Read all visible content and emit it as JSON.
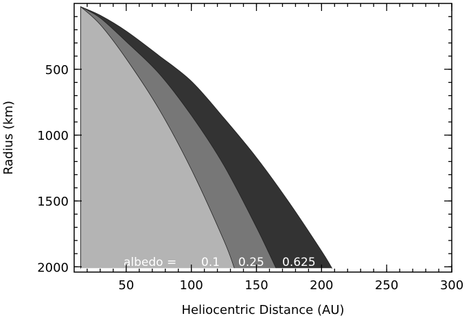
{
  "chart_data": {
    "type": "area",
    "title": "",
    "xlabel": "Heliocentric Distance (AU)",
    "ylabel": "Radius (km)",
    "xlim": [
      10,
      300
    ],
    "ylim": [
      0,
      2040
    ],
    "y_inverted": true,
    "grid": false,
    "x_ticks": [
      50,
      100,
      150,
      200,
      250,
      300
    ],
    "y_ticks": [
      500,
      1000,
      1500,
      2000
    ],
    "x_minor_step": 10,
    "y_minor_step": 100,
    "series": [
      {
        "name": "0.625",
        "color": "#333333",
        "x": [
          15,
          30,
          50,
          75,
          100,
          125,
          150,
          175,
          200,
          208
        ],
        "y": [
          25,
          90,
          210,
          395,
          590,
          870,
          1170,
          1510,
          1880,
          2010
        ]
      },
      {
        "name": "0.25",
        "color": "#777777",
        "x": [
          15,
          30,
          50,
          75,
          100,
          125,
          150,
          165
        ],
        "y": [
          25,
          110,
          290,
          530,
          850,
          1230,
          1700,
          2010
        ]
      },
      {
        "name": "0.1",
        "color": "#b4b4b4",
        "x": [
          15,
          30,
          50,
          75,
          100,
          125,
          133
        ],
        "y": [
          25,
          160,
          420,
          800,
          1260,
          1800,
          2010
        ]
      }
    ],
    "annotation": {
      "prefix": "albedo  =",
      "labels": [
        "0.1",
        "0.25",
        "0.625"
      ]
    }
  }
}
